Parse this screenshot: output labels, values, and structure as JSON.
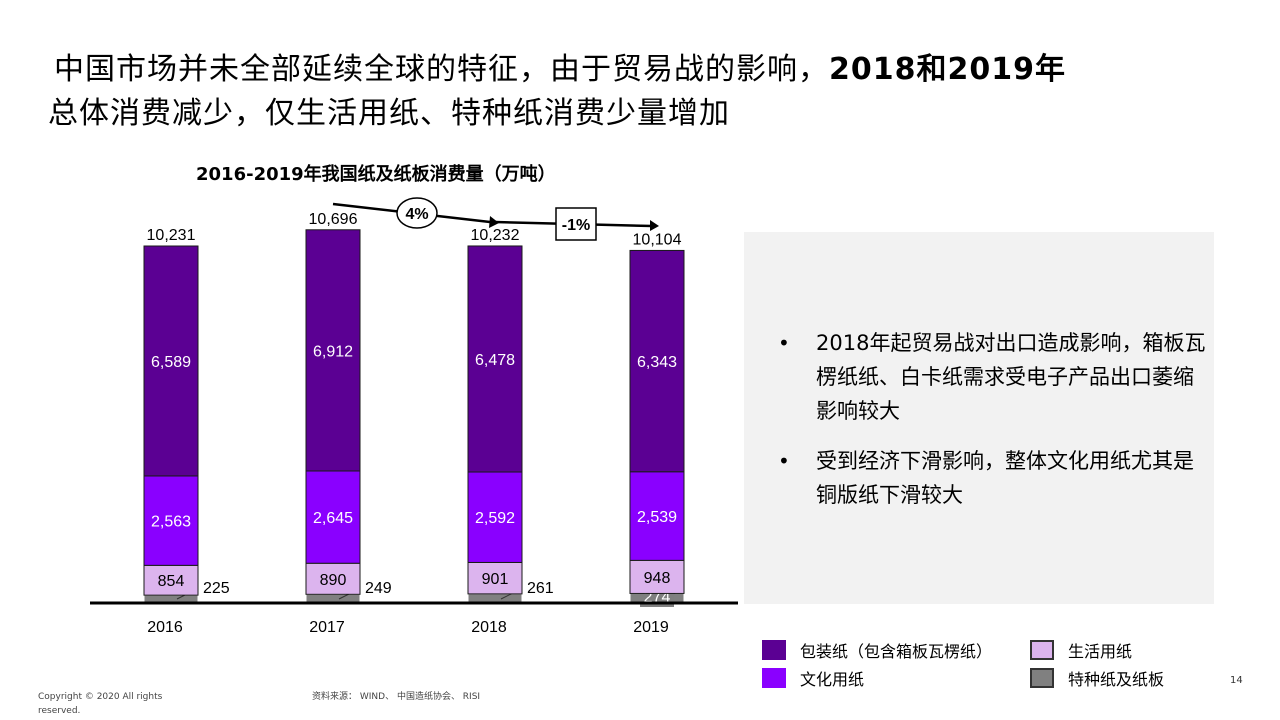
{
  "title": {
    "line1_a": "中国市场并未全部延续全球的特征，由于贸易战的影响，",
    "line1_b": "2018和2019年",
    "line2": "总体消费减少，仅生活用纸、特种纸消费少量增加"
  },
  "chart_data": {
    "type": "stacked-bar",
    "title": "2016-2019年我国纸及纸板消费量（万吨）",
    "categories": [
      "2016",
      "2017",
      "2018",
      "2019"
    ],
    "series": [
      {
        "name": "特种纸及纸板",
        "color": "#808080",
        "values": [
          225,
          249,
          261,
          274
        ]
      },
      {
        "name": "生活用纸",
        "color": "#dcb4ee",
        "values": [
          854,
          890,
          901,
          948
        ]
      },
      {
        "name": "文化用纸",
        "color": "#8a00ff",
        "values": [
          2563,
          2645,
          2592,
          2539
        ]
      },
      {
        "name": "包装纸（包含箱板瓦楞纸）",
        "color": "#5b0093",
        "values": [
          6589,
          6912,
          6478,
          6343
        ]
      }
    ],
    "totals": [
      "10,231",
      "10,696",
      "10,232",
      "10,104"
    ],
    "value_labels": {
      "特种纸及纸板": [
        "225",
        "249",
        "261",
        "274"
      ],
      "生活用纸": [
        "854",
        "890",
        "901",
        "948"
      ],
      "文化用纸": [
        "2,563",
        "2,645",
        "2,592",
        "2,539"
      ],
      "包装纸（包含箱板瓦楞纸）": [
        "6,589",
        "6,912",
        "6,478",
        "6,343"
      ]
    },
    "growth_annotations": [
      "4%",
      "-1%"
    ],
    "ylim": [
      0,
      11000
    ],
    "legend_position": "bottom-right"
  },
  "notes": {
    "bullet_char": "•",
    "items": [
      "2018年起贸易战对出口造成影响，箱板瓦楞纸纸、白卡纸需求受电子产品出口萎缩影响较大",
      "受到经济下滑影响，整体文化用纸尤其是铜版纸下滑较大"
    ]
  },
  "legend": {
    "packaging": "包装纸（包含箱板瓦楞纸）",
    "culture": "文化用纸",
    "tissue": "生活用纸",
    "special": "特种纸及纸板"
  },
  "footer": {
    "copyright": "Copyright © 2020 All rights reserved.",
    "source": "资料来源： WIND、 中国造纸协会、 RISI",
    "page": "14"
  }
}
